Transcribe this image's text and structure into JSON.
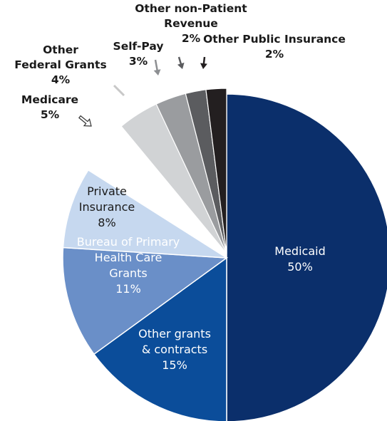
{
  "chart_data": {
    "type": "pie",
    "title": "",
    "slices": [
      {
        "name": "Medicaid",
        "value": 50,
        "label_lines": [
          "Medicaid",
          "50%"
        ],
        "color": "#0b2f6b",
        "text_color": "#ffffff",
        "label_inside": true,
        "exploded": false
      },
      {
        "name": "Other grants & contracts",
        "value": 15,
        "label_lines": [
          "Other grants",
          "& contracts",
          "15%"
        ],
        "color": "#0b4d9a",
        "text_color": "#ffffff",
        "label_inside": true,
        "exploded": false
      },
      {
        "name": "Bureau of Primary Health Care Grants",
        "value": 11,
        "label_lines": [
          "Bureau of Primary",
          "Health Care",
          "Grants",
          "11%"
        ],
        "color": "#6a8fc8",
        "text_color": "#ffffff",
        "label_inside": true,
        "exploded": false
      },
      {
        "name": "Private Insurance",
        "value": 8,
        "label_lines": [
          "Private",
          "Insurance",
          "8%"
        ],
        "color": "#c6d8ef",
        "text_color": "#1a1a1a",
        "label_inside": true,
        "exploded": false
      },
      {
        "name": "Medicare",
        "value": 5,
        "label_lines": [
          "Medicare",
          "5%"
        ],
        "color": "#ffffff",
        "text_color": "#1a1a1a",
        "label_inside": false,
        "exploded": true
      },
      {
        "name": "Other Federal Grants",
        "value": 4,
        "label_lines": [
          "Other",
          "Federal Grants",
          "4%"
        ],
        "color": "#d1d3d5",
        "text_color": "#1a1a1a",
        "label_inside": false,
        "exploded": true
      },
      {
        "name": "Self-Pay",
        "value": 3,
        "label_lines": [
          "Self-Pay",
          "3%"
        ],
        "color": "#9a9c9f",
        "text_color": "#1a1a1a",
        "label_inside": false,
        "exploded": true
      },
      {
        "name": "Other non-Patient Revenue",
        "value": 2,
        "label_lines": [
          "Other non-Patient",
          "Revenue",
          "2%"
        ],
        "color": "#5b5c5f",
        "text_color": "#1a1a1a",
        "label_inside": false,
        "exploded": true
      },
      {
        "name": "Other Public Insurance",
        "value": 2,
        "label_lines": [
          "Other Public Insurance",
          "2%"
        ],
        "color": "#231f20",
        "text_color": "#1a1a1a",
        "label_inside": false,
        "exploded": true
      }
    ],
    "start_angle_deg": 0,
    "direction": "clockwise",
    "legend": "none",
    "grid": false
  }
}
